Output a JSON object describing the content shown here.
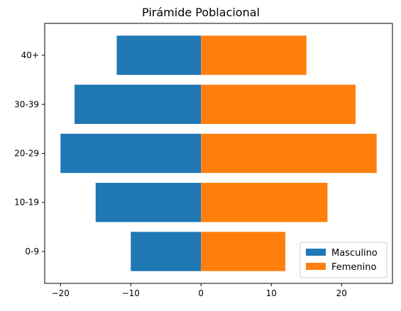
{
  "chart_data": {
    "type": "bar",
    "orientation": "horizontal",
    "title": "Pirámide Poblacional",
    "xlabel": "",
    "ylabel": "",
    "categories": [
      "0-9",
      "10-19",
      "20-29",
      "30-39",
      "40+"
    ],
    "series": [
      {
        "name": "Masculino",
        "values": [
          -10,
          -15,
          -20,
          -18,
          -12
        ],
        "color": "#1f77b4"
      },
      {
        "name": "Femenino",
        "values": [
          12,
          18,
          25,
          22,
          15
        ],
        "color": "#ff7f0e"
      }
    ],
    "xlim": [
      -22.25,
      27.25
    ],
    "xticks": [
      -20,
      -10,
      0,
      10,
      20
    ],
    "xtick_labels": [
      "−20",
      "−10",
      "0",
      "10",
      "20"
    ],
    "grid": false,
    "legend_position": "lower-right"
  }
}
